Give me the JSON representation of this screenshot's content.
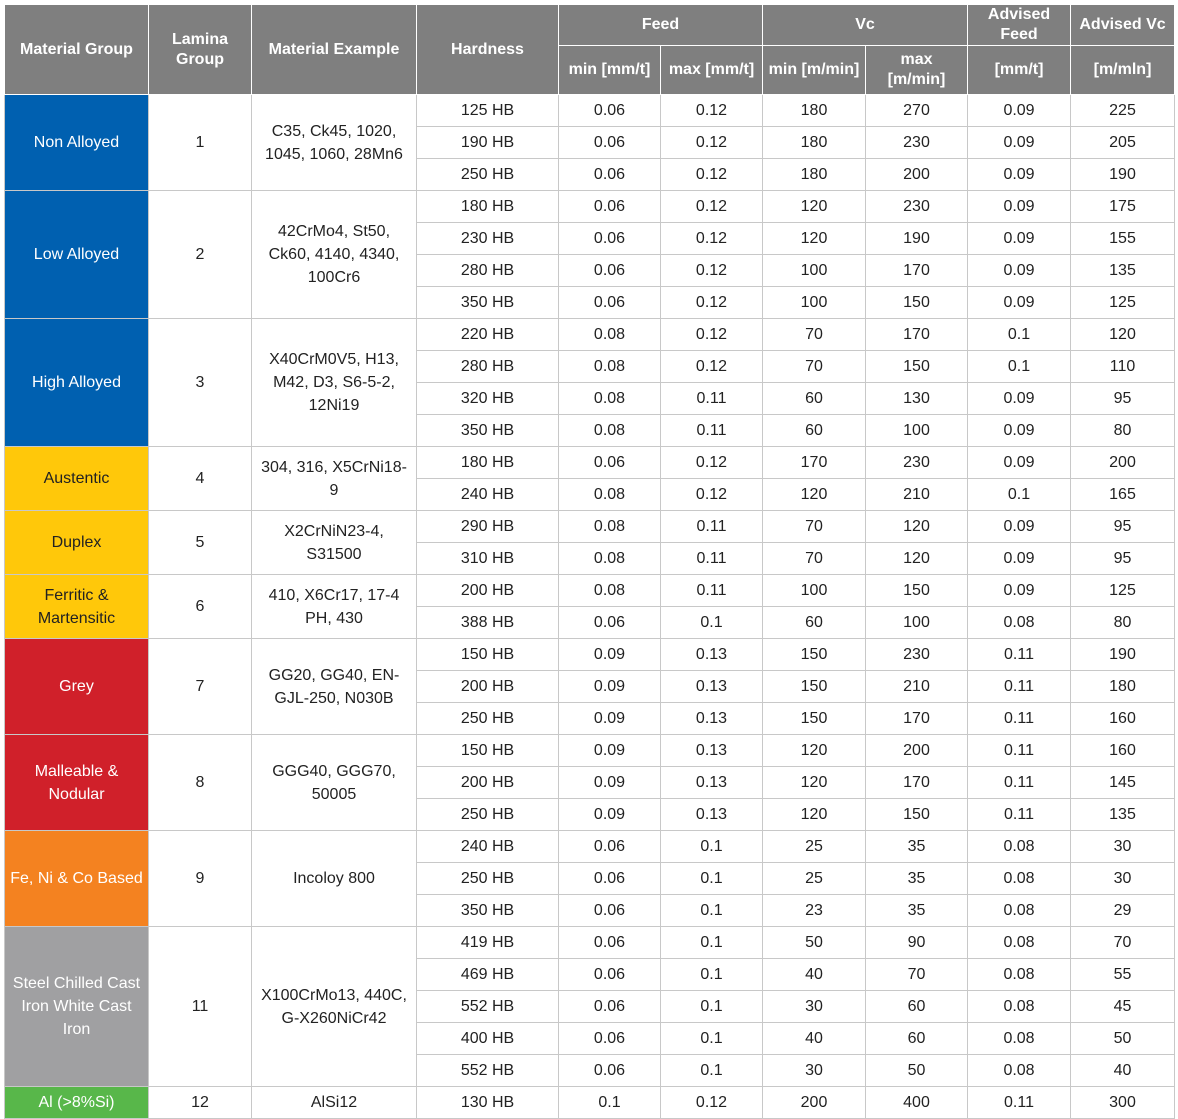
{
  "columns": {
    "material_group": "Material Group",
    "lamina_group": "Lamina Group",
    "material_example": "Material Example",
    "hardness": "Hardness",
    "feed": "Feed",
    "vc": "Vc",
    "advised_feed": "Advised Feed",
    "advised_vc": "Advised Vc",
    "feed_min": "min [mm/t]",
    "feed_max": "max [mm/t]",
    "vc_min": "min [m/min]",
    "vc_max": "max [m/min]",
    "advised_feed_unit": "[mm/t]",
    "advised_vc_unit": "[m/mln]"
  },
  "colors": {
    "blue": "#0060b0",
    "yellow": "#ffc80a",
    "red": "#d0202a",
    "orange": "#f48220",
    "grey": "#a0a0a2",
    "green": "#58b74a",
    "header": "#7f7f7f"
  },
  "groups": [
    {
      "name": "Non Alloyed",
      "lamina": "1",
      "example": "C35, Ck45, 1020, 1045, 1060, 28Mn6",
      "color": "blue",
      "rows": [
        [
          "125 HB",
          "0.06",
          "0.12",
          "180",
          "270",
          "0.09",
          "225"
        ],
        [
          "190 HB",
          "0.06",
          "0.12",
          "180",
          "230",
          "0.09",
          "205"
        ],
        [
          "250 HB",
          "0.06",
          "0.12",
          "180",
          "200",
          "0.09",
          "190"
        ]
      ]
    },
    {
      "name": "Low Alloyed",
      "lamina": "2",
      "example": "42CrMo4, St50, Ck60, 4140, 4340, 100Cr6",
      "color": "blue",
      "rows": [
        [
          "180 HB",
          "0.06",
          "0.12",
          "120",
          "230",
          "0.09",
          "175"
        ],
        [
          "230 HB",
          "0.06",
          "0.12",
          "120",
          "190",
          "0.09",
          "155"
        ],
        [
          "280 HB",
          "0.06",
          "0.12",
          "100",
          "170",
          "0.09",
          "135"
        ],
        [
          "350 HB",
          "0.06",
          "0.12",
          "100",
          "150",
          "0.09",
          "125"
        ]
      ]
    },
    {
      "name": "High Alloyed",
      "lamina": "3",
      "example": "X40CrM0V5, H13, M42, D3, S6-5-2, 12Ni19",
      "color": "blue",
      "rows": [
        [
          "220 HB",
          "0.08",
          "0.12",
          "70",
          "170",
          "0.1",
          "120"
        ],
        [
          "280 HB",
          "0.08",
          "0.12",
          "70",
          "150",
          "0.1",
          "110"
        ],
        [
          "320 HB",
          "0.08",
          "0.11",
          "60",
          "130",
          "0.09",
          "95"
        ],
        [
          "350 HB",
          "0.08",
          "0.11",
          "60",
          "100",
          "0.09",
          "80"
        ]
      ]
    },
    {
      "name": "Austentic",
      "lamina": "4",
      "example": "304, 316, X5CrNi18-9",
      "color": "yellow",
      "rows": [
        [
          "180 HB",
          "0.06",
          "0.12",
          "170",
          "230",
          "0.09",
          "200"
        ],
        [
          "240 HB",
          "0.08",
          "0.12",
          "120",
          "210",
          "0.1",
          "165"
        ]
      ]
    },
    {
      "name": "Duplex",
      "lamina": "5",
      "example": "X2CrNiN23-4, S31500",
      "color": "yellow",
      "rows": [
        [
          "290 HB",
          "0.08",
          "0.11",
          "70",
          "120",
          "0.09",
          "95"
        ],
        [
          "310 HB",
          "0.08",
          "0.11",
          "70",
          "120",
          "0.09",
          "95"
        ]
      ]
    },
    {
      "name": "Ferritic & Martensitic",
      "lamina": "6",
      "example": "410, X6Cr17, 17-4 PH, 430",
      "color": "yellow",
      "rows": [
        [
          "200 HB",
          "0.08",
          "0.11",
          "100",
          "150",
          "0.09",
          "125"
        ],
        [
          "388 HB",
          "0.06",
          "0.1",
          "60",
          "100",
          "0.08",
          "80"
        ]
      ]
    },
    {
      "name": "Grey",
      "lamina": "7",
      "example": "GG20, GG40, EN-GJL-250, N030B",
      "color": "red",
      "rows": [
        [
          "150 HB",
          "0.09",
          "0.13",
          "150",
          "230",
          "0.11",
          "190"
        ],
        [
          "200 HB",
          "0.09",
          "0.13",
          "150",
          "210",
          "0.11",
          "180"
        ],
        [
          "250 HB",
          "0.09",
          "0.13",
          "150",
          "170",
          "0.11",
          "160"
        ]
      ]
    },
    {
      "name": "Malleable & Nodular",
      "lamina": "8",
      "example": "GGG40, GGG70, 50005",
      "color": "red",
      "rows": [
        [
          "150 HB",
          "0.09",
          "0.13",
          "120",
          "200",
          "0.11",
          "160"
        ],
        [
          "200 HB",
          "0.09",
          "0.13",
          "120",
          "170",
          "0.11",
          "145"
        ],
        [
          "250 HB",
          "0.09",
          "0.13",
          "120",
          "150",
          "0.11",
          "135"
        ]
      ]
    },
    {
      "name": "Fe, Ni & Co Based",
      "lamina": "9",
      "example": "Incoloy 800",
      "color": "orange",
      "rows": [
        [
          "240 HB",
          "0.06",
          "0.1",
          "25",
          "35",
          "0.08",
          "30"
        ],
        [
          "250 HB",
          "0.06",
          "0.1",
          "25",
          "35",
          "0.08",
          "30"
        ],
        [
          "350 HB",
          "0.06",
          "0.1",
          "23",
          "35",
          "0.08",
          "29"
        ]
      ]
    },
    {
      "name": "Steel Chilled Cast Iron White Cast Iron",
      "lamina": "11",
      "example": "X100CrMo13, 440C, G-X260NiCr42",
      "color": "grey",
      "rows": [
        [
          "419 HB",
          "0.06",
          "0.1",
          "50",
          "90",
          "0.08",
          "70"
        ],
        [
          "469 HB",
          "0.06",
          "0.1",
          "40",
          "70",
          "0.08",
          "55"
        ],
        [
          "552 HB",
          "0.06",
          "0.1",
          "30",
          "60",
          "0.08",
          "45"
        ],
        [
          "400 HB",
          "0.06",
          "0.1",
          "40",
          "60",
          "0.08",
          "50"
        ],
        [
          "552 HB",
          "0.06",
          "0.1",
          "30",
          "50",
          "0.08",
          "40"
        ]
      ]
    },
    {
      "name": "Al (>8%Si)",
      "lamina": "12",
      "example": "AlSi12",
      "color": "green",
      "rows": [
        [
          "130 HB",
          "0.1",
          "0.12",
          "200",
          "400",
          "0.11",
          "300"
        ]
      ]
    }
  ]
}
